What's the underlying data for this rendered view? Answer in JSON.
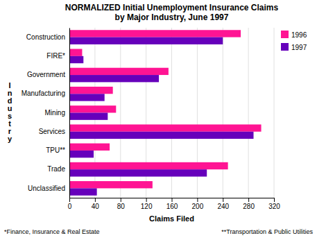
{
  "chart_data": {
    "type": "bar",
    "orientation": "horizontal",
    "title": "NORMALIZED Initial Unemployment Insurance Claims\nby Major Industry, June 1997",
    "xlabel": "Claims Filed",
    "ylabel": "I\nn\nd\nu\ns\nt\nr\ny",
    "categories": [
      "Unclassified",
      "Trade",
      "TPU**",
      "Services",
      "Mining",
      "Manufacturing",
      "Government",
      "FIRE*",
      "Construction"
    ],
    "series": [
      {
        "name": "1996",
        "color": "#FF1493",
        "values": [
          130,
          248,
          63,
          300,
          73,
          68,
          155,
          20,
          268
        ]
      },
      {
        "name": "1997",
        "color": "#6600BB",
        "values": [
          43,
          215,
          38,
          288,
          60,
          55,
          140,
          22,
          240
        ]
      }
    ],
    "xlim": [
      0,
      320
    ],
    "xticks": [
      0,
      40,
      80,
      120,
      160,
      200,
      240,
      280,
      320
    ],
    "grid": true,
    "legend": "upper right",
    "annotations": [
      "*Finance, Insurance & Real Estate",
      "**Transportation & Public Utilities"
    ]
  }
}
